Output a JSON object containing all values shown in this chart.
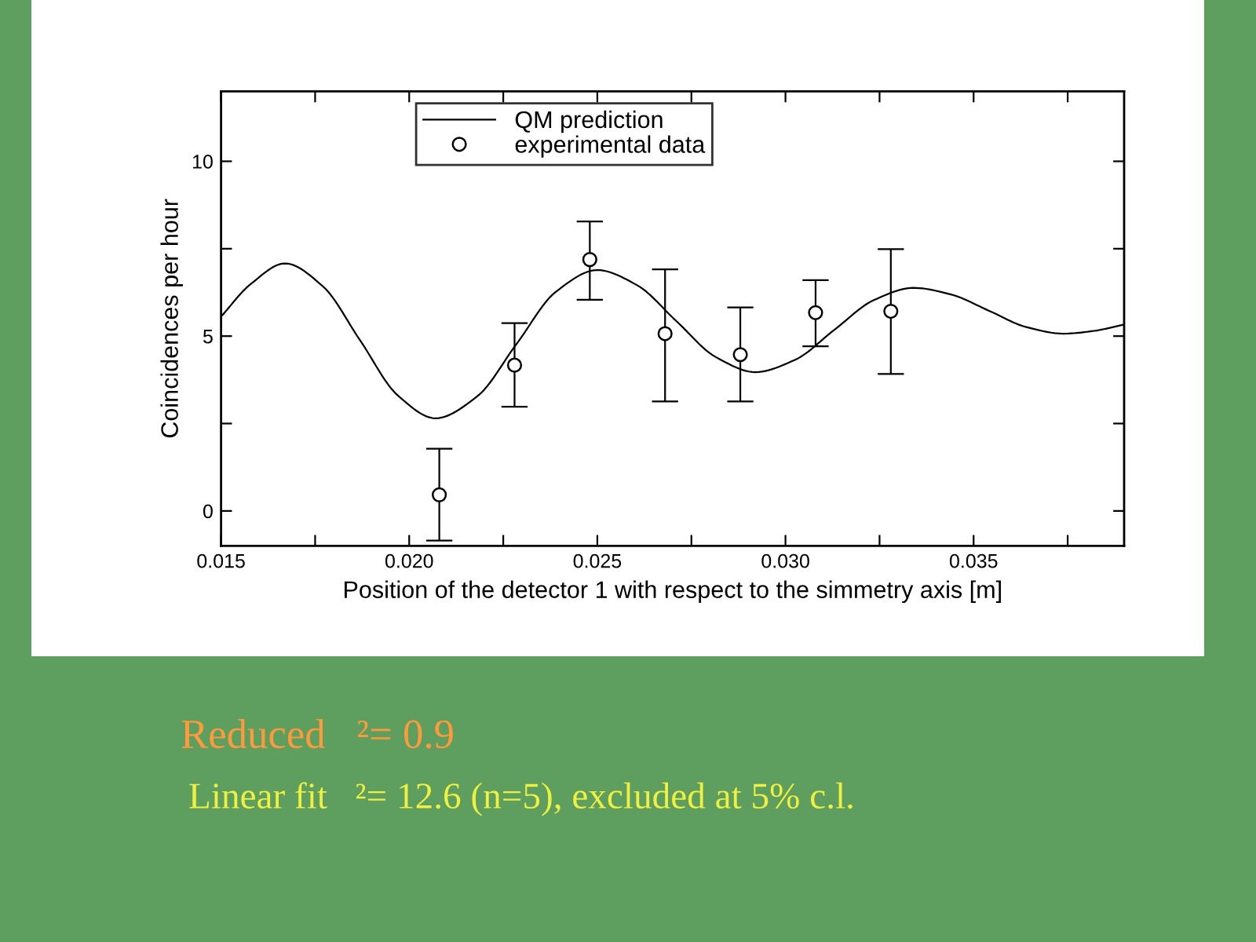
{
  "chart_data": {
    "type": "line",
    "xlabel": "Position of the detector 1 with respect to the simmetry axis [m]",
    "ylabel": "Coincidences per hour",
    "xlim": [
      0.015,
      0.039
    ],
    "xticks": [
      0.015,
      {
        "value": 0.0175,
        "label": null
      },
      {
        "value": 0.02,
        "label": "0.020"
      },
      {
        "value": 0.0225,
        "label": null
      },
      0.025,
      {
        "value": 0.0275,
        "label": null
      },
      {
        "value": 0.03,
        "label": "0.030"
      },
      {
        "value": 0.0325,
        "label": null
      },
      0.035,
      {
        "value": 0.0375,
        "label": null
      }
    ],
    "ylim": [
      -1,
      12
    ],
    "yticks": [
      0,
      {
        "value": 2.5,
        "label": null
      },
      5,
      {
        "value": 7.5,
        "label": null
      },
      10
    ],
    "series": [
      {
        "name": "QM prediction",
        "color": "#000000",
        "marker": "none",
        "line_style": "solid",
        "x": [
          0.015,
          0.0158,
          0.0167,
          0.0177,
          0.0187,
          0.0197,
          0.0207,
          0.0218,
          0.02285,
          0.0239,
          0.025,
          0.02605,
          0.0271,
          0.02815,
          0.0292,
          0.03025,
          0.0313,
          0.03235,
          0.0334,
          0.0344,
          0.0354,
          0.0364,
          0.0374,
          0.0382,
          0.039
        ],
        "values": [
          5.56,
          6.5,
          7.08,
          6.43,
          4.87,
          3.3,
          2.65,
          3.27,
          4.77,
          6.27,
          6.89,
          6.46,
          5.43,
          4.4,
          3.97,
          4.32,
          5.18,
          6.03,
          6.38,
          6.19,
          5.73,
          5.26,
          5.07,
          5.15,
          5.33
        ]
      },
      {
        "name": "experimental data",
        "type": "scatter",
        "color": "#000000",
        "marker": "circle",
        "x": [
          0.0208,
          0.0228,
          0.0248,
          0.0268,
          0.0288,
          0.0308,
          0.0328
        ],
        "values": [
          0.46,
          4.17,
          7.19,
          5.07,
          4.47,
          5.67,
          5.71
        ],
        "errors": [
          [
            -0.85,
            1.78
          ],
          [
            2.98,
            5.37
          ],
          [
            6.04,
            8.28
          ],
          [
            3.13,
            6.91
          ],
          [
            3.13,
            5.82
          ],
          [
            4.71,
            6.6
          ],
          [
            3.92,
            7.49
          ]
        ]
      }
    ],
    "legend": "top",
    "grid": false,
    "annotations": [
      "Reduced   ²= 0.9",
      "Linear fit   ²= 12.6 (n=5), excluded at 5% c.l."
    ]
  }
}
